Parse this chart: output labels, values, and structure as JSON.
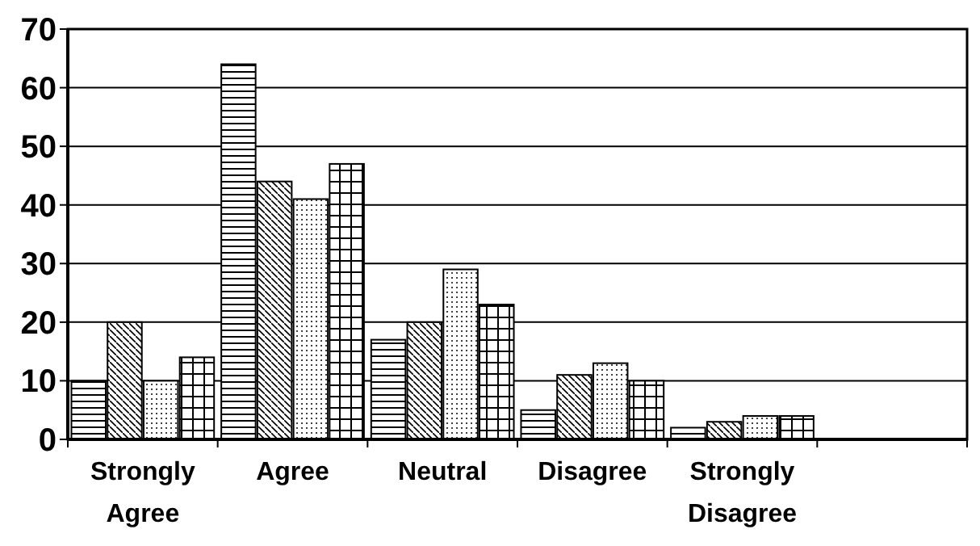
{
  "chart_data": {
    "type": "bar",
    "categories": [
      "Strongly Agree",
      "Agree",
      "Neutral",
      "Disagree",
      "Strongly Disagree",
      null
    ],
    "series": [
      {
        "color": "#000000",
        "values": [
          10,
          64,
          17,
          5,
          2,
          null
        ]
      },
      {
        "color": "#000000",
        "values": [
          20,
          44,
          20,
          11,
          3,
          null
        ]
      },
      {
        "color": "#000000",
        "values": [
          10,
          41,
          29,
          13,
          4,
          null
        ]
      },
      {
        "color": "#000000",
        "values": [
          14,
          47,
          23,
          10,
          4,
          null
        ]
      }
    ],
    "ylim": [
      0,
      70
    ],
    "yticks": [
      0,
      10,
      20,
      30,
      40,
      50,
      60,
      70
    ],
    "grid": "y"
  }
}
